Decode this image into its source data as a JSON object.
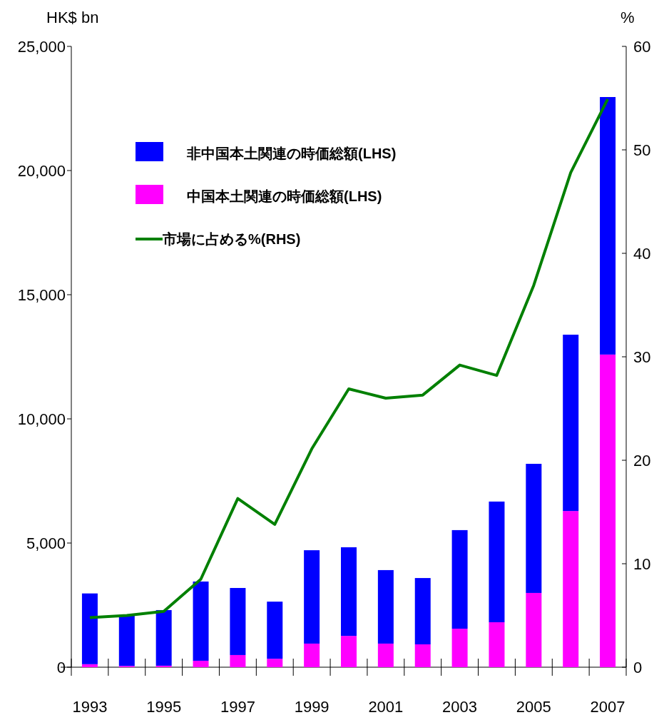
{
  "chart_data": {
    "type": "bar",
    "stacked": true,
    "ylabel": "HK$ bn",
    "y2label": "%",
    "legend": "top left",
    "categories": [
      "1993",
      null,
      "1995",
      null,
      "1997",
      null,
      "1999",
      null,
      "2001",
      null,
      "2003",
      null,
      "2005",
      null,
      "2007"
    ],
    "series": [
      {
        "name": "中国本土関連の時価総額(LHS)",
        "color": "#ff00ff",
        "values": [
          120,
          50,
          60,
          260,
          490,
          340,
          950,
          1260,
          950,
          920,
          1550,
          1810,
          2990,
          6290,
          12590
        ]
      },
      {
        "name": "非中国本土関連の時価総額(LHS)",
        "color": "#0000ff",
        "values": [
          2850,
          2050,
          2240,
          3190,
          2700,
          2300,
          3760,
          3570,
          2960,
          2670,
          3970,
          4860,
          5200,
          7100,
          10370
        ]
      },
      {
        "name": "市場に占める%(RHS)",
        "type": "line",
        "axis": "y2",
        "color": "#008000",
        "values": [
          4.8,
          5.0,
          5.4,
          8.5,
          16.3,
          13.8,
          21.1,
          26.9,
          26.0,
          26.3,
          29.2,
          28.2,
          36.9,
          47.8,
          54.9
        ]
      }
    ],
    "ylim": [
      0,
      25000
    ],
    "yticks": [
      0,
      {
        "value": 5000,
        "label": "5,000"
      },
      {
        "value": 10000,
        "label": "10,000"
      },
      {
        "value": 15000,
        "label": "15,000"
      },
      {
        "value": 20000,
        "label": "20,000"
      },
      {
        "value": 25000,
        "label": "25,000"
      }
    ],
    "y2lim": [
      0,
      60
    ],
    "y2ticks": [
      0,
      10,
      20,
      30,
      40,
      50,
      60
    ]
  }
}
